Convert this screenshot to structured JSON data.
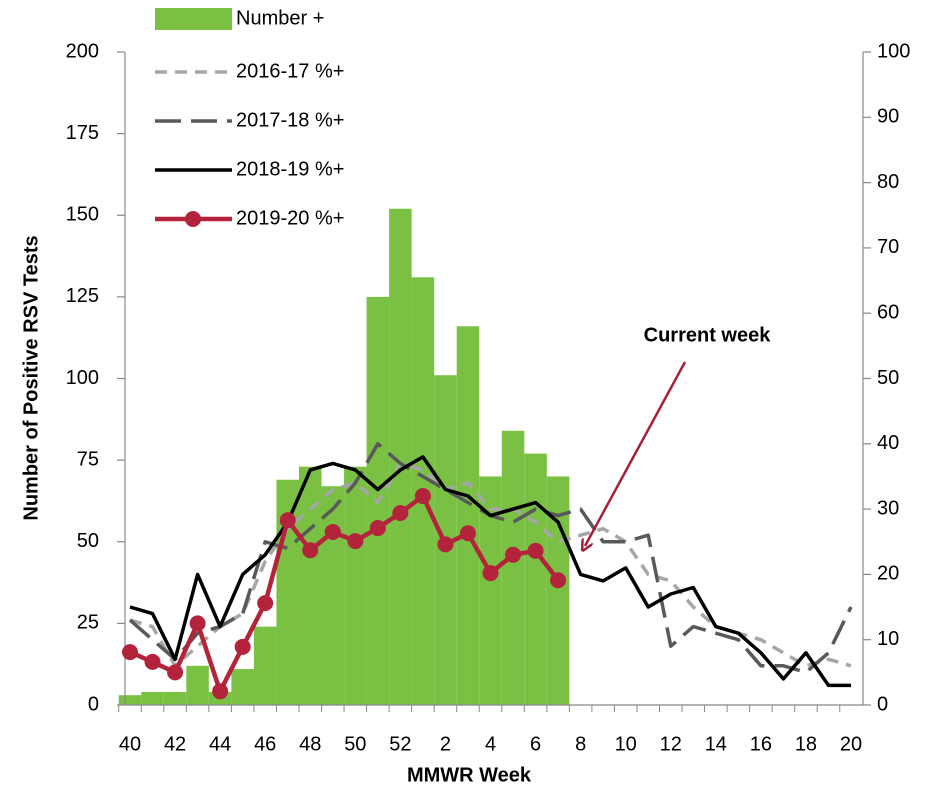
{
  "chart_data": {
    "type": "combo",
    "xlabel": "MMWR Week",
    "ylabel": "Number of Positive RSV Tests",
    "categories": [
      "40",
      null,
      "42",
      null,
      "44",
      null,
      "46",
      null,
      "48",
      null,
      "50",
      null,
      "52",
      null,
      "2",
      null,
      "4",
      null,
      "6",
      null,
      "8",
      null,
      "10",
      null,
      "12",
      null,
      "14",
      null,
      "16",
      null,
      "18",
      null,
      "20"
    ],
    "ylim": [
      0,
      200
    ],
    "yticks": [
      0,
      25,
      50,
      75,
      100,
      125,
      150,
      175,
      200
    ],
    "y2lim": [
      0,
      100
    ],
    "y2ticks": [
      0,
      10,
      20,
      30,
      40,
      50,
      60,
      70,
      80,
      90,
      100
    ],
    "legend": "upper left",
    "series": [
      {
        "name": "Number +",
        "type": "bar",
        "color": "#7ac143",
        "values": [
          3,
          4,
          4,
          12,
          4,
          11,
          24,
          69,
          73,
          67,
          73,
          125,
          152,
          131,
          101,
          116,
          70,
          84,
          77,
          70,
          null,
          null,
          null,
          null,
          null,
          null,
          null,
          null,
          null,
          null,
          null,
          null,
          null
        ]
      },
      {
        "name": "2016-17 %+",
        "type": "line",
        "axis": "y2",
        "color": "#a6a6a6",
        "dash": "short",
        "values": [
          13,
          12,
          6,
          9,
          12,
          14,
          22,
          27,
          30,
          33,
          34,
          31,
          37,
          36,
          33,
          34,
          30,
          30,
          28,
          25,
          26,
          27,
          25,
          20,
          19,
          15,
          12,
          11,
          10,
          8,
          6,
          7,
          6
        ]
      },
      {
        "name": "2017-18 %+",
        "type": "line",
        "axis": "y2",
        "color": "#595959",
        "dash": "long",
        "values": [
          13,
          10,
          7,
          11,
          12,
          14,
          25,
          24,
          27,
          30,
          34,
          40,
          37,
          35,
          33,
          31,
          29,
          28,
          30,
          29,
          30,
          25,
          25,
          26,
          9,
          12,
          11,
          10,
          6,
          6,
          5,
          8,
          15
        ]
      },
      {
        "name": "2018-19 %+",
        "type": "line",
        "axis": "y2",
        "color": "#000000",
        "dash": "solid",
        "values": [
          15,
          14,
          7,
          20,
          12,
          20,
          23,
          28,
          36,
          37,
          36,
          33,
          36,
          38,
          33,
          32,
          29,
          30,
          31,
          28,
          20,
          19,
          21,
          15,
          17,
          18,
          12,
          11,
          8,
          4,
          8,
          3,
          3
        ]
      },
      {
        "name": "2019-20 %+",
        "type": "line",
        "axis": "y2",
        "color": "#b3233b",
        "dash": "solid",
        "marker": "circle",
        "values": [
          8.1,
          6.6,
          5,
          12.5,
          2.1,
          8.9,
          15.6,
          28.3,
          23.7,
          26.5,
          25.1,
          27.1,
          29.4,
          32,
          24.6,
          26.3,
          20.2,
          23,
          23.6,
          19.1,
          null,
          null,
          null,
          null,
          null,
          null,
          null,
          null,
          null,
          null,
          null,
          null,
          null
        ]
      }
    ],
    "annotation": {
      "text": "Current week",
      "color": "#a51f3a"
    }
  }
}
